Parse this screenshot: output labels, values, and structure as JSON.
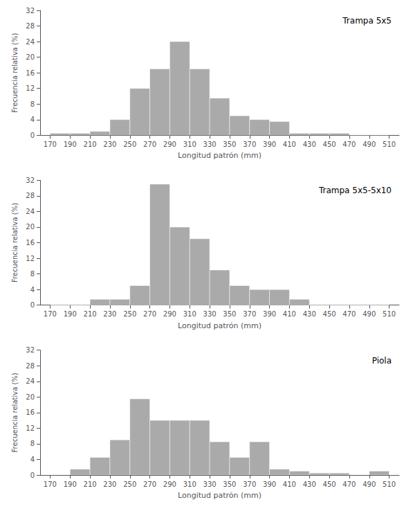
{
  "chart_data": [
    {
      "type": "histogram",
      "title": "Trampa 5x5",
      "xlabel": "Longitud patrón (mm)",
      "ylabel": "Frecuencia relativa (%)",
      "bins": [
        170,
        190,
        210,
        230,
        250,
        270,
        290,
        310,
        330,
        350,
        370,
        390,
        410,
        430,
        450,
        470,
        490,
        510
      ],
      "values": [
        0.5,
        0.5,
        1.0,
        4.0,
        12.0,
        17.0,
        24.0,
        17.0,
        9.5,
        5.0,
        4.0,
        3.5,
        0.5,
        0.5,
        0.5,
        0.0,
        0.0
      ],
      "color": "#aaaaaa",
      "xlim": [
        160,
        520
      ],
      "xticks": [
        170,
        190,
        210,
        230,
        250,
        270,
        290,
        310,
        330,
        350,
        370,
        390,
        410,
        430,
        450,
        470,
        490,
        510
      ],
      "ylim": [
        0,
        32
      ],
      "yticks": [
        0,
        4,
        8,
        12,
        16,
        20,
        24,
        28,
        32
      ],
      "grid": false
    },
    {
      "type": "histogram",
      "title": "Trampa 5x5-5x10",
      "xlabel": "Longitud patrón (mm)",
      "ylabel": "Frecuencia relativa (%)",
      "bins": [
        170,
        190,
        210,
        230,
        250,
        270,
        290,
        310,
        330,
        350,
        370,
        390,
        410,
        430,
        450,
        470,
        490,
        510
      ],
      "values": [
        0.0,
        0.0,
        1.5,
        1.5,
        5.0,
        31.0,
        20.0,
        17.0,
        9.0,
        5.0,
        4.0,
        4.0,
        1.5,
        0.0,
        0.0,
        0.0,
        0.0
      ],
      "color": "#aaaaaa",
      "xlim": [
        160,
        520
      ],
      "xticks": [
        170,
        190,
        210,
        230,
        250,
        270,
        290,
        310,
        330,
        350,
        370,
        390,
        410,
        430,
        450,
        470,
        490,
        510
      ],
      "ylim": [
        0,
        32
      ],
      "yticks": [
        0,
        4,
        8,
        12,
        16,
        20,
        24,
        28,
        32
      ],
      "grid": false
    },
    {
      "type": "histogram",
      "title": "Piola",
      "xlabel": "Longitud patrón (mm)",
      "ylabel": "Frecuencia relativa (%)",
      "bins": [
        170,
        190,
        210,
        230,
        250,
        270,
        290,
        310,
        330,
        350,
        370,
        390,
        410,
        430,
        450,
        470,
        490,
        510
      ],
      "values": [
        0.0,
        1.5,
        4.5,
        9.0,
        19.5,
        14.0,
        14.0,
        14.0,
        8.5,
        4.5,
        8.5,
        1.5,
        1.0,
        0.5,
        0.5,
        0.0,
        1.0
      ],
      "color": "#aaaaaa",
      "xlim": [
        160,
        520
      ],
      "xticks": [
        170,
        190,
        210,
        230,
        250,
        270,
        290,
        310,
        330,
        350,
        370,
        390,
        410,
        430,
        450,
        470,
        490,
        510
      ],
      "ylim": [
        0,
        32
      ],
      "yticks": [
        0,
        4,
        8,
        12,
        16,
        20,
        24,
        28,
        32
      ],
      "grid": false
    }
  ]
}
